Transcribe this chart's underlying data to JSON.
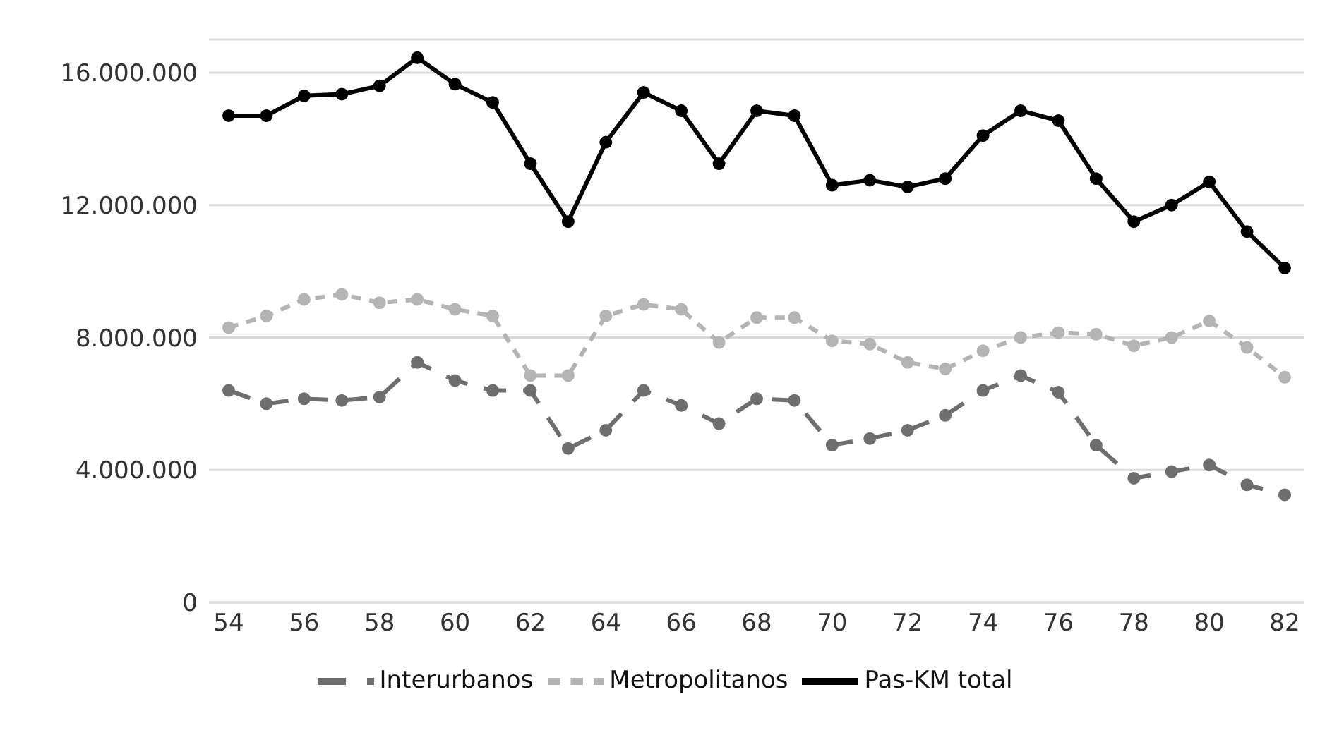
{
  "chart_data": {
    "type": "line",
    "categories": [
      "54",
      null,
      "56",
      null,
      "58",
      null,
      "60",
      null,
      "62",
      null,
      "64",
      null,
      "66",
      null,
      "68",
      null,
      "70",
      null,
      "72",
      null,
      "74",
      null,
      "76",
      null,
      "78",
      null,
      "80",
      null,
      "82"
    ],
    "series": [
      {
        "name": "Pas-KM total",
        "color": "#000000",
        "line_style": "solid",
        "values": [
          14700000,
          14700000,
          15300000,
          15350000,
          15600000,
          16450000,
          15650000,
          15100000,
          13250000,
          11500000,
          13900000,
          15400000,
          14850000,
          13250000,
          14850000,
          14700000,
          12600000,
          12750000,
          12550000,
          12800000,
          14100000,
          14850000,
          14550000,
          12800000,
          11500000,
          12000000,
          12700000,
          11200000,
          10100000
        ]
      },
      {
        "name": "Metropolitanos",
        "color": "#b4b4b4",
        "line_style": "dashed",
        "values": [
          8300000,
          8650000,
          9150000,
          9300000,
          9050000,
          9150000,
          8850000,
          8650000,
          6850000,
          6850000,
          8650000,
          9000000,
          8850000,
          7850000,
          8600000,
          8600000,
          7900000,
          7800000,
          7250000,
          7050000,
          7600000,
          8000000,
          8150000,
          8100000,
          7750000,
          8000000,
          8500000,
          7700000,
          6800000
        ]
      },
      {
        "name": "Interurbanos",
        "color": "#6e6e6e",
        "line_style": "dashed",
        "values": [
          6400000,
          6000000,
          6150000,
          6100000,
          6200000,
          7250000,
          6700000,
          6400000,
          6400000,
          4650000,
          5200000,
          6400000,
          5950000,
          5400000,
          6150000,
          6100000,
          4750000,
          4950000,
          5200000,
          5650000,
          6400000,
          6850000,
          6350000,
          4750000,
          3750000,
          3950000,
          4150000,
          3550000,
          3250000
        ]
      }
    ],
    "ylim": [
      0,
      17000000
    ],
    "yticks": [
      {
        "value": 0,
        "label": "0"
      },
      {
        "value": 4000000,
        "label": "4.000.000"
      },
      {
        "value": 8000000,
        "label": "8.000.000"
      },
      {
        "value": 12000000,
        "label": "12.000.000"
      },
      {
        "value": 16000000,
        "label": "16.000.000"
      }
    ],
    "grid": "y",
    "legend": "bottom",
    "marker": "circle"
  }
}
